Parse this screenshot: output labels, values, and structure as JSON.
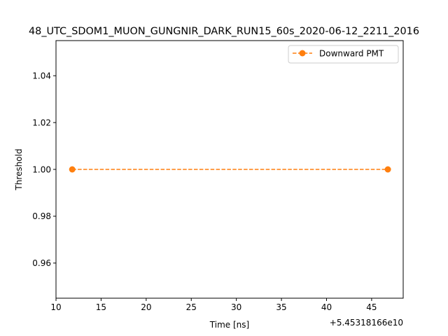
{
  "chart_data": {
    "type": "line",
    "title": "48_UTC_SDOM1_MUON_GUNGNIR_DARK_RUN15_60s_2020-06-12_2211_2016",
    "xlabel": "Time [ns]",
    "ylabel": "Threshold",
    "x_offset_label": "+5.45318166e10",
    "xlim": [
      10.0,
      48.5
    ],
    "ylim": [
      0.945,
      1.055
    ],
    "xticks": [
      10,
      15,
      20,
      25,
      30,
      35,
      40,
      45
    ],
    "yticks": [
      0.96,
      0.98,
      1.0,
      1.02,
      1.04
    ],
    "ytick_labels": [
      "0.96",
      "0.98",
      "1.00",
      "1.02",
      "1.04"
    ],
    "grid": false,
    "legend_position": "upper right",
    "series": [
      {
        "name": "Downward PMT",
        "color": "#ff7f0e",
        "linestyle": "dashed",
        "marker": "circle",
        "x": [
          11.8,
          46.8
        ],
        "y": [
          1.0,
          1.0
        ]
      }
    ]
  }
}
